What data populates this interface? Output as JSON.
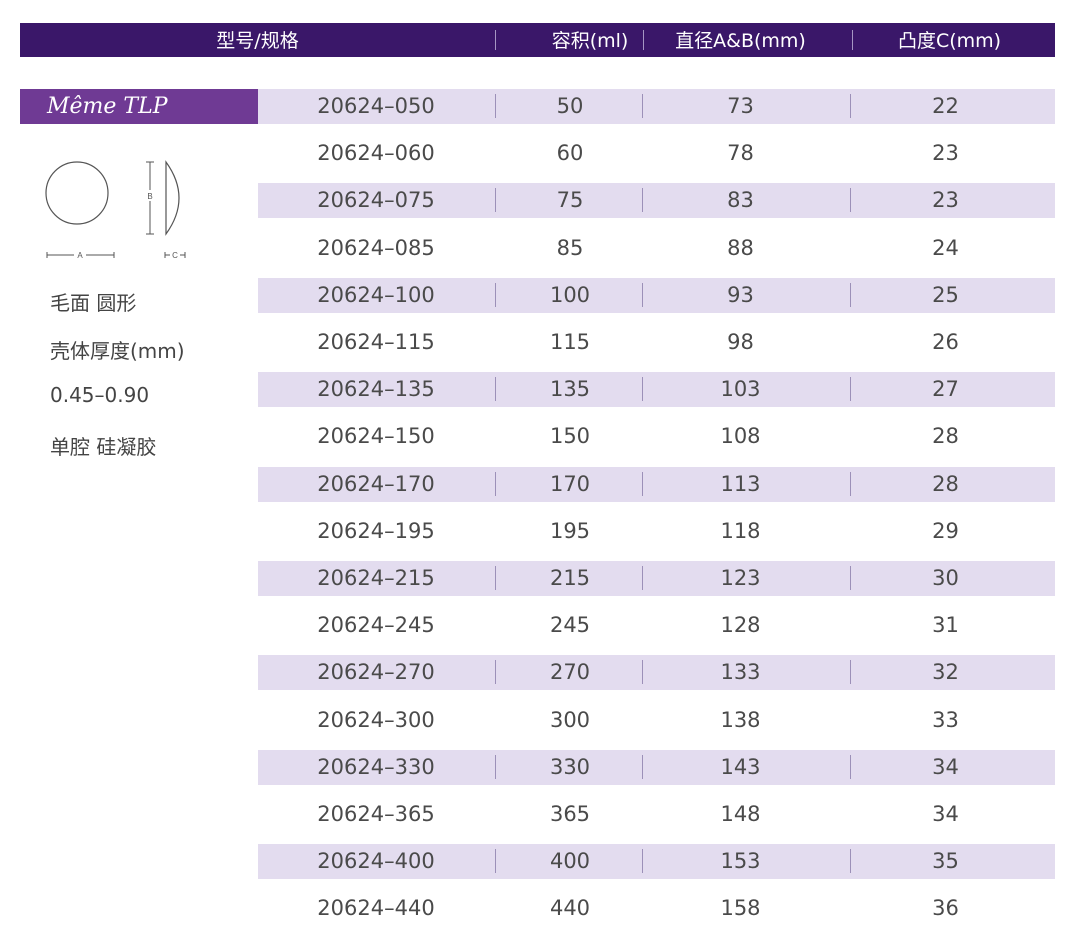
{
  "header": {
    "model": "型号/规格",
    "volume": "容积(ml)",
    "diameter": "直径A&B(mm)",
    "projection": "凸度C(mm)"
  },
  "product": {
    "name": "Même TLP",
    "diagram_labels": {
      "a": "A",
      "b": "B",
      "c": "C"
    },
    "desc": [
      "毛面 圆形",
      "壳体厚度(mm)",
      "0.45–0.90",
      "单腔 硅凝胶"
    ]
  },
  "rows": [
    {
      "model": "20624–050",
      "volume": "50",
      "diameter": "73",
      "projection": "22"
    },
    {
      "model": "20624–060",
      "volume": "60",
      "diameter": "78",
      "projection": "23"
    },
    {
      "model": "20624–075",
      "volume": "75",
      "diameter": "83",
      "projection": "23"
    },
    {
      "model": "20624–085",
      "volume": "85",
      "diameter": "88",
      "projection": "24"
    },
    {
      "model": "20624–100",
      "volume": "100",
      "diameter": "93",
      "projection": "25"
    },
    {
      "model": "20624–115",
      "volume": "115",
      "diameter": "98",
      "projection": "26"
    },
    {
      "model": "20624–135",
      "volume": "135",
      "diameter": "103",
      "projection": "27"
    },
    {
      "model": "20624–150",
      "volume": "150",
      "diameter": "108",
      "projection": "28"
    },
    {
      "model": "20624–170",
      "volume": "170",
      "diameter": "113",
      "projection": "28"
    },
    {
      "model": "20624–195",
      "volume": "195",
      "diameter": "118",
      "projection": "29"
    },
    {
      "model": "20624–215",
      "volume": "215",
      "diameter": "123",
      "projection": "30"
    },
    {
      "model": "20624–245",
      "volume": "245",
      "diameter": "128",
      "projection": "31"
    },
    {
      "model": "20624–270",
      "volume": "270",
      "diameter": "133",
      "projection": "32"
    },
    {
      "model": "20624–300",
      "volume": "300",
      "diameter": "138",
      "projection": "33"
    },
    {
      "model": "20624–330",
      "volume": "330",
      "diameter": "143",
      "projection": "34"
    },
    {
      "model": "20624–365",
      "volume": "365",
      "diameter": "148",
      "projection": "34"
    },
    {
      "model": "20624–400",
      "volume": "400",
      "diameter": "153",
      "projection": "35"
    },
    {
      "model": "20624–440",
      "volume": "440",
      "diameter": "158",
      "projection": "36"
    }
  ],
  "colors": {
    "header_bg": "#3a1769",
    "product_bg": "#6f3a94",
    "row_shade": "#e3dcef"
  }
}
